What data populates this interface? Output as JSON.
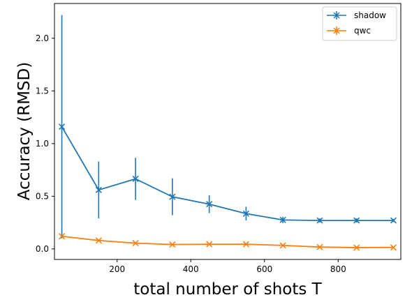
{
  "chart_data": {
    "type": "line",
    "title": "",
    "xlabel": "total number of shots T",
    "ylabel": "Accuracy (RMSD)",
    "xlim": [
      30,
      970
    ],
    "ylim": [
      -0.1,
      2.33
    ],
    "xticks": [
      200,
      400,
      600,
      800
    ],
    "yticks": [
      0.0,
      0.5,
      1.0,
      1.5,
      2.0
    ],
    "x": [
      50,
      150,
      250,
      350,
      450,
      550,
      650,
      750,
      850,
      950
    ],
    "legend_position": "top-right",
    "series": [
      {
        "name": "shadow",
        "color": "#1f77b4",
        "values": [
          1.16,
          0.56,
          0.665,
          0.495,
          0.425,
          0.335,
          0.275,
          0.27,
          0.27,
          0.27
        ],
        "errors": [
          1.06,
          0.27,
          0.2,
          0.175,
          0.085,
          0.065,
          0.03,
          0.02,
          0.02,
          0.015
        ]
      },
      {
        "name": "qwc",
        "color": "#ff7f0e",
        "values": [
          0.12,
          0.08,
          0.055,
          0.042,
          0.045,
          0.045,
          0.033,
          0.018,
          0.012,
          0.014
        ],
        "errors": [
          0.0,
          0.0,
          0.0,
          0.0,
          0.0,
          0.0,
          0.0,
          0.0,
          0.0,
          0.0
        ]
      }
    ]
  }
}
